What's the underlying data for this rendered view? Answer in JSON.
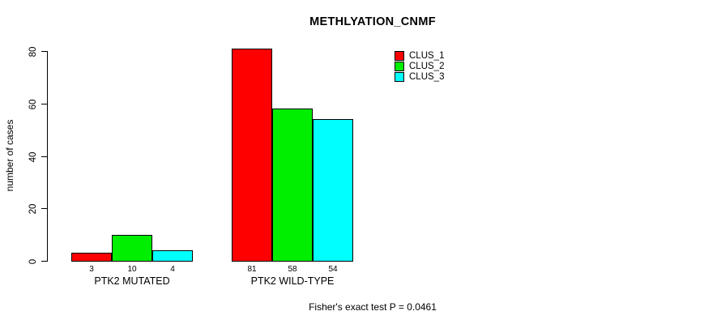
{
  "chart_data": {
    "type": "bar",
    "title": "METHLYATION_CNMF",
    "ylabel": "number of cases",
    "xlabel": "",
    "categories": [
      "PTK2 MUTATED",
      "PTK2 WILD-TYPE"
    ],
    "series": [
      {
        "name": "CLUS_1",
        "color": "#FF0000",
        "values": [
          3,
          81
        ]
      },
      {
        "name": "CLUS_2",
        "color": "#00EE00",
        "values": [
          10,
          58
        ]
      },
      {
        "name": "CLUS_3",
        "color": "#00FFFF",
        "values": [
          4,
          54
        ]
      }
    ],
    "ylim": [
      0,
      80
    ],
    "yticks": [
      0,
      20,
      40,
      60,
      80
    ],
    "bar_value_labels": [
      [
        "3",
        "10",
        "4"
      ],
      [
        "81",
        "58",
        "54"
      ]
    ],
    "grid": false,
    "legend_position": "top-right",
    "bar_border_color": "#000000"
  },
  "annotations": {
    "footer": "Fisher's exact test P = 0.0461"
  }
}
